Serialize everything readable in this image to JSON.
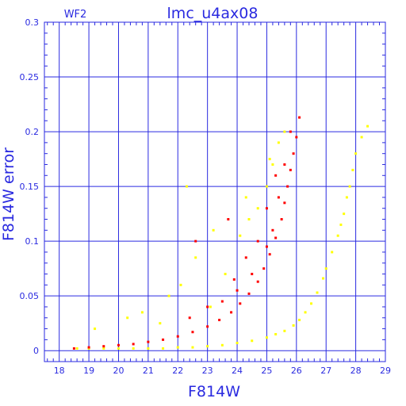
{
  "chart_data": {
    "type": "scatter",
    "chip": "WF2",
    "title": "lmc_u4ax08",
    "xlabel": "F814W",
    "ylabel": "F814W error",
    "xlim": [
      17.5,
      29
    ],
    "ylim": [
      -0.01,
      0.3
    ],
    "xticks": [
      "18",
      "19",
      "20",
      "21",
      "22",
      "23",
      "24",
      "25",
      "26",
      "27",
      "28",
      "29"
    ],
    "yticks": [
      "0",
      "0.05",
      "0.1",
      "0.15",
      "0.2",
      "0.25",
      "0.3"
    ],
    "grid": true,
    "series": [
      {
        "color": "#ffff00",
        "x": [
          18.6,
          19.0,
          19.5,
          20.0,
          20.5,
          21.0,
          21.5,
          22.0,
          22.5,
          23.0,
          23.5,
          24.0,
          24.5,
          25.0,
          25.3,
          25.6,
          25.9,
          26.1,
          26.3,
          26.5,
          26.7,
          26.9,
          27.0,
          27.2,
          27.4,
          27.5,
          27.6,
          27.7,
          27.8,
          27.9,
          28.0,
          28.2,
          28.4,
          19.2,
          20.3,
          21.4,
          22.1,
          22.6,
          23.1,
          23.6,
          24.1,
          24.4,
          24.7,
          25.0,
          25.2,
          25.4,
          25.6,
          22.3,
          23.2,
          24.3,
          25.1,
          21.7,
          20.8
        ],
        "y": [
          0.002,
          0.002,
          0.002,
          0.002,
          0.002,
          0.002,
          0.002,
          0.003,
          0.003,
          0.004,
          0.005,
          0.007,
          0.009,
          0.012,
          0.015,
          0.018,
          0.023,
          0.028,
          0.035,
          0.043,
          0.053,
          0.066,
          0.075,
          0.09,
          0.105,
          0.115,
          0.125,
          0.14,
          0.15,
          0.165,
          0.18,
          0.195,
          0.205,
          0.02,
          0.03,
          0.025,
          0.06,
          0.085,
          0.04,
          0.07,
          0.105,
          0.12,
          0.13,
          0.15,
          0.17,
          0.19,
          0.2,
          0.15,
          0.11,
          0.14,
          0.175,
          0.05,
          0.035
        ]
      },
      {
        "color": "#ff0000",
        "x": [
          18.5,
          19.0,
          19.5,
          20.0,
          20.5,
          21.0,
          21.5,
          22.0,
          22.5,
          23.0,
          23.4,
          23.8,
          24.1,
          24.4,
          24.7,
          24.9,
          25.1,
          25.3,
          25.5,
          25.6,
          25.7,
          25.8,
          25.9,
          26.0,
          26.1,
          23.5,
          24.0,
          24.5,
          25.0,
          25.2,
          25.4,
          25.6,
          25.8,
          22.4,
          23.0,
          23.9,
          24.3,
          24.7,
          25.0,
          25.3,
          22.6,
          23.7
        ],
        "y": [
          0.002,
          0.003,
          0.004,
          0.005,
          0.006,
          0.008,
          0.01,
          0.013,
          0.017,
          0.022,
          0.028,
          0.035,
          0.043,
          0.052,
          0.063,
          0.075,
          0.088,
          0.103,
          0.12,
          0.135,
          0.15,
          0.165,
          0.18,
          0.195,
          0.213,
          0.045,
          0.055,
          0.07,
          0.095,
          0.11,
          0.14,
          0.17,
          0.2,
          0.03,
          0.04,
          0.065,
          0.085,
          0.1,
          0.13,
          0.16,
          0.1,
          0.12
        ]
      }
    ]
  }
}
